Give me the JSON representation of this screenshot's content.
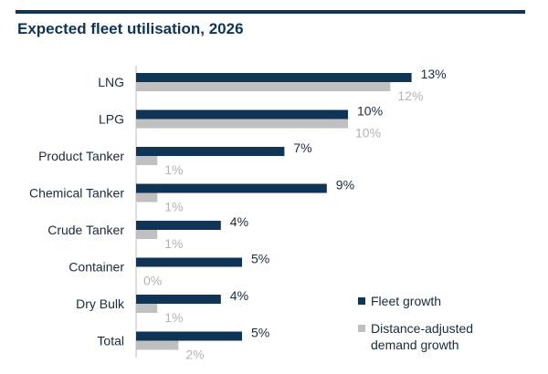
{
  "title": "Expected fleet utilisation, 2026",
  "colors": {
    "fleet": "#0f3456",
    "demand": "#c0c0c0",
    "axis": "#bfbfbf"
  },
  "chart_data": {
    "type": "bar",
    "orientation": "horizontal",
    "title": "Expected fleet utilisation, 2026",
    "categories": [
      "LNG",
      "LPG",
      "Product Tanker",
      "Chemical Tanker",
      "Crude Tanker",
      "Container",
      "Dry Bulk",
      "Total"
    ],
    "series": [
      {
        "name": "Fleet growth",
        "values": [
          13,
          10,
          7,
          9,
          4,
          5,
          4,
          5
        ],
        "labels": [
          "13%",
          "10%",
          "7%",
          "9%",
          "4%",
          "5%",
          "4%",
          "5%"
        ]
      },
      {
        "name": "Distance-adjusted demand growth",
        "values": [
          12,
          10,
          1,
          1,
          1,
          0,
          1,
          2
        ],
        "labels": [
          "12%",
          "10%",
          "1%",
          "1%",
          "1%",
          "0%",
          "1%",
          "2%"
        ]
      }
    ],
    "xlim": [
      0,
      13
    ],
    "legend": {
      "position": "bottom-right",
      "entries": [
        "Fleet growth",
        "Distance-adjusted demand growth"
      ]
    }
  },
  "legend": {
    "fleet_label": "Fleet growth",
    "demand_label_line1": "Distance-adjusted",
    "demand_label_line2": "demand growth"
  }
}
